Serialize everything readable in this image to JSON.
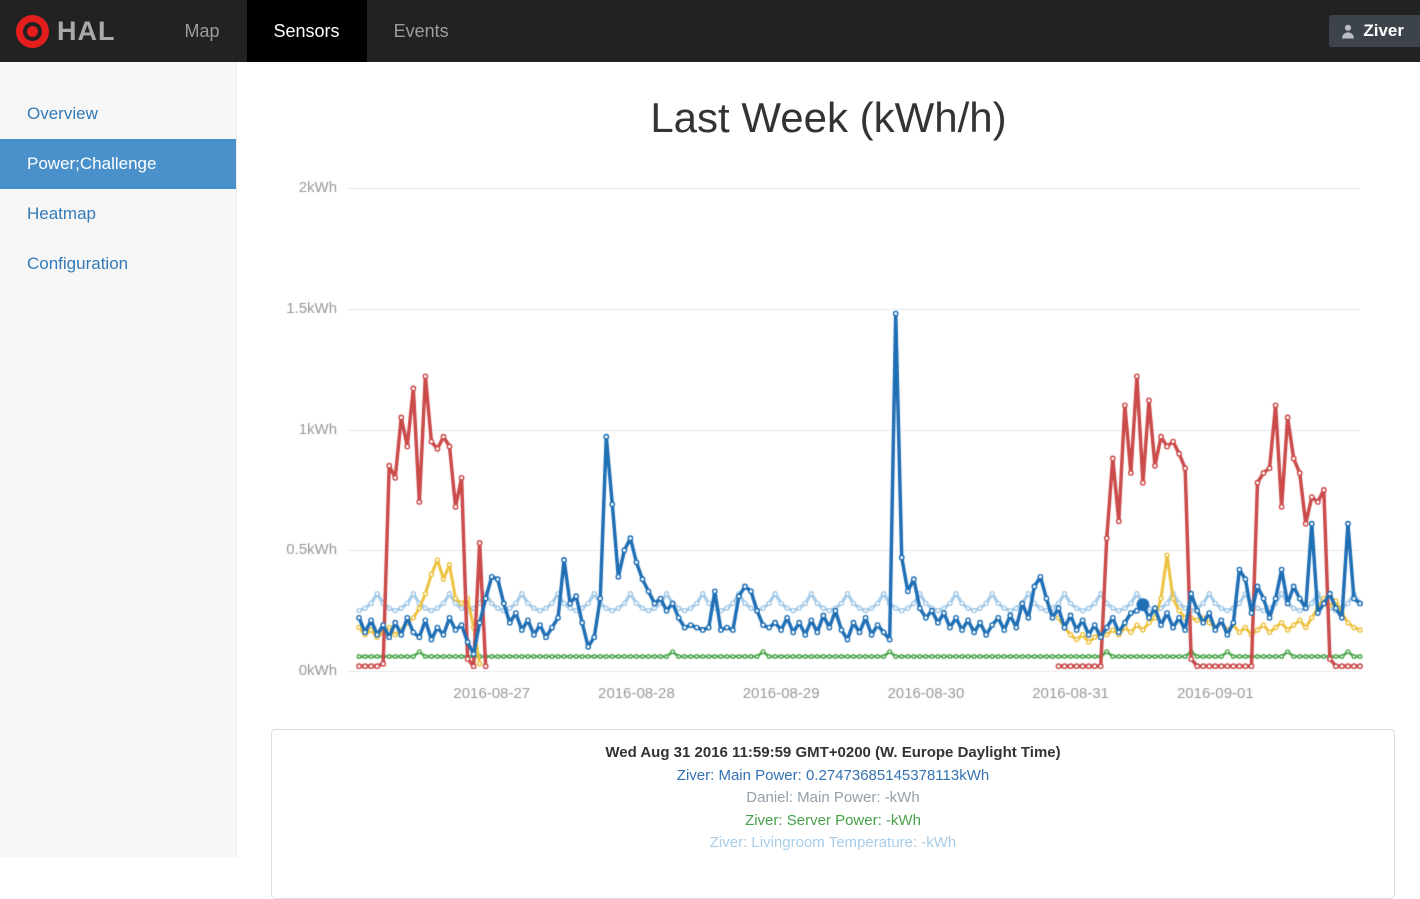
{
  "navbar": {
    "brand": "HAL",
    "items": [
      {
        "label": "Map",
        "active": false
      },
      {
        "label": "Sensors",
        "active": true
      },
      {
        "label": "Events",
        "active": false
      }
    ],
    "user": "Ziver"
  },
  "sidebar": {
    "items": [
      {
        "label": "Overview",
        "active": false
      },
      {
        "label": "Power;Challenge",
        "active": true
      },
      {
        "label": "Heatmap",
        "active": false
      },
      {
        "label": "Configuration",
        "active": false
      }
    ],
    "active_color": "#4a90ca",
    "link_color": "#337ab7"
  },
  "main": {
    "title": "Last Week (kWh/h)"
  },
  "tooltip_panel": {
    "lines": [
      {
        "text": "Wed Aug 31 2016 11:59:59 GMT+0200 (W. Europe Daylight Time)",
        "color": "#333333",
        "bold": true
      },
      {
        "text": "Ziver: Main Power: 0.27473685145378113kWh",
        "color": "#3572b0",
        "bold": false
      },
      {
        "text": "Daniel: Main Power: -kWh",
        "color": "#94a0ab",
        "bold": false
      },
      {
        "text": "Ziver: Server Power: -kWh",
        "color": "#46a049",
        "bold": false
      },
      {
        "text": "Ziver: Livingroom Temperature: -kWh",
        "color": "#a8cde8",
        "bold": false
      }
    ]
  },
  "chart_data": {
    "type": "line",
    "title": "Last Week (kWh/h)",
    "axes": {
      "x_epoch": "2016-08-26 00:00",
      "x_unit": "hours",
      "x_min_hour": 0,
      "x_max_hour": 168,
      "ylim": [
        0,
        2
      ],
      "grid": "horizontal-only",
      "tick_color": "#999999",
      "grid_color": "#e8e8e8"
    },
    "y_ticks": [
      {
        "v": 0,
        "label": "0kWh"
      },
      {
        "v": 0.5,
        "label": "0.5kWh"
      },
      {
        "v": 1,
        "label": "1kWh"
      },
      {
        "v": 1.5,
        "label": "1.5kWh"
      },
      {
        "v": 2,
        "label": "2kWh"
      }
    ],
    "x_ticks": [
      {
        "hour": 24,
        "label": "2016-08-27"
      },
      {
        "hour": 48,
        "label": "2016-08-28"
      },
      {
        "hour": 72,
        "label": "2016-08-29"
      },
      {
        "hour": 96,
        "label": "2016-08-30"
      },
      {
        "hour": 120,
        "label": "2016-08-31"
      },
      {
        "hour": 144,
        "label": "2016-09-01"
      }
    ],
    "hover_point": {
      "hour": 132,
      "value": 0.2747,
      "series": "Ziver: Main Power",
      "color": "#1f6fb5",
      "radius": 6.5
    },
    "series": [
      {
        "name": "Ziver: Livingroom Temperature",
        "color": "#a6cbe8",
        "line_width": 3.2,
        "marker_radius": 2.0,
        "z": 1,
        "segments": [
          {
            "start_hour": 2,
            "values": [
              0.25,
              0.26,
              0.28,
              0.32,
              0.28,
              0.26,
              0.25,
              0.26,
              0.28,
              0.32,
              0.28,
              0.26,
              0.25,
              0.26,
              0.28,
              0.32,
              0.28,
              0.26,
              0.25,
              0.26,
              0.28,
              0.32,
              0.28,
              0.26,
              0.25,
              0.26,
              0.28,
              0.32,
              0.28,
              0.26,
              0.25,
              0.26,
              0.28,
              0.32,
              0.28,
              0.26,
              0.25,
              0.26,
              0.28,
              0.32,
              0.28,
              0.26,
              0.25,
              0.26,
              0.28,
              0.32,
              0.28,
              0.26,
              0.25,
              0.26,
              0.28,
              0.32,
              0.28,
              0.26,
              0.25,
              0.26,
              0.28,
              0.32,
              0.28,
              0.26,
              0.25,
              0.26,
              0.28,
              0.32,
              0.28,
              0.26,
              0.25,
              0.26,
              0.28,
              0.32,
              0.28,
              0.26,
              0.25,
              0.26,
              0.28,
              0.32,
              0.28,
              0.26,
              0.25,
              0.26,
              0.28,
              0.32,
              0.28,
              0.26,
              0.25,
              0.26,
              0.28,
              0.32,
              0.28,
              0.26,
              0.25,
              0.26,
              0.28,
              0.32,
              0.28,
              0.26,
              0.25,
              0.26,
              0.28,
              0.32,
              0.28,
              0.26,
              0.25,
              0.26,
              0.28,
              0.32,
              0.28,
              0.26,
              0.25,
              0.26,
              0.28,
              0.32,
              0.28,
              0.26,
              0.25,
              0.26,
              0.28,
              0.32,
              0.28,
              0.26,
              0.25,
              0.26,
              0.28,
              0.32,
              0.28,
              0.26,
              0.25,
              0.26,
              0.28,
              0.32,
              0.28,
              0.26,
              0.25,
              0.26,
              0.28,
              0.32,
              0.28,
              0.26,
              0.25,
              0.26,
              0.28,
              0.32,
              0.28,
              0.26,
              0.25,
              0.26,
              0.28,
              0.32,
              0.28,
              0.26,
              0.25,
              0.26,
              0.28,
              0.32,
              0.28,
              0.26,
              0.25,
              0.26,
              0.28,
              0.32,
              0.28,
              0.26,
              0.25,
              0.26,
              0.28,
              0.32,
              0.28
            ]
          }
        ]
      },
      {
        "name": "Ziver: Server Power",
        "color": "#4da74d",
        "line_width": 2.5,
        "marker_radius": 1.8,
        "z": 2,
        "segments": [
          {
            "start_hour": 2,
            "values": [
              0.06,
              0.06,
              0.06,
              0.06,
              0.06,
              0.06,
              0.06,
              0.06,
              0.06,
              0.06,
              0.08,
              0.06,
              0.06,
              0.06,
              0.06,
              0.06,
              0.06,
              0.06,
              0.06,
              0.06,
              0.06,
              0.06,
              0.06,
              0.06,
              0.06,
              0.06,
              0.06,
              0.06,
              0.06,
              0.06,
              0.06,
              0.06,
              0.06,
              0.06,
              0.06,
              0.06,
              0.06,
              0.06,
              0.06,
              0.06,
              0.06,
              0.06,
              0.06,
              0.06,
              0.06,
              0.06,
              0.06,
              0.06,
              0.06,
              0.06,
              0.06,
              0.06,
              0.08,
              0.06,
              0.06,
              0.06,
              0.06,
              0.06,
              0.06,
              0.06,
              0.06,
              0.06,
              0.06,
              0.06,
              0.06,
              0.06,
              0.06,
              0.08,
              0.06,
              0.06,
              0.06,
              0.06,
              0.06,
              0.06,
              0.06,
              0.06,
              0.06,
              0.06,
              0.06,
              0.06,
              0.06,
              0.06,
              0.06,
              0.06,
              0.06,
              0.06,
              0.06,
              0.06,
              0.08,
              0.06,
              0.06,
              0.06,
              0.06,
              0.06,
              0.06,
              0.06,
              0.06,
              0.06,
              0.06,
              0.06,
              0.06,
              0.06,
              0.06,
              0.06,
              0.06,
              0.06,
              0.06,
              0.06,
              0.06,
              0.06,
              0.06,
              0.06,
              0.06,
              0.06,
              0.06,
              0.06,
              0.06,
              0.06,
              0.06,
              0.06,
              0.06,
              0.06,
              0.06,
              0.06,
              0.08,
              0.06,
              0.06,
              0.06,
              0.06,
              0.06,
              0.06,
              0.06,
              0.06,
              0.06,
              0.06,
              0.06,
              0.06,
              0.06,
              0.08,
              0.06,
              0.06,
              0.06,
              0.06,
              0.06,
              0.08,
              0.06,
              0.06,
              0.06,
              0.06,
              0.06,
              0.06,
              0.06,
              0.06,
              0.06,
              0.08,
              0.06,
              0.06,
              0.06,
              0.06,
              0.06,
              0.06,
              0.06,
              0.06,
              0.06,
              0.08,
              0.06,
              0.06
            ]
          }
        ]
      },
      {
        "name": "",
        "color": "#edc240",
        "line_width": 3.0,
        "marker_radius": 2.0,
        "z": 3,
        "segments": [
          {
            "start_hour": 2,
            "values": [
              0.18,
              0.15,
              0.17,
              0.14,
              0.16,
              0.18,
              0.15,
              0.17,
              0.2,
              0.22,
              0.26,
              0.32,
              0.4,
              0.46,
              0.38,
              0.44,
              0.3,
              0.28,
              0.3,
              0.18,
              0.03
            ]
          },
          {
            "start_hour": 118,
            "values": [
              0.22,
              0.18,
              0.15,
              0.13,
              0.15,
              0.12,
              0.14,
              0.16,
              0.15,
              0.17,
              0.15,
              0.18,
              0.16,
              0.19,
              0.17,
              0.2,
              0.22,
              0.3,
              0.48,
              0.3,
              0.25,
              0.22,
              0.22,
              0.21,
              0.22,
              0.2,
              0.18,
              0.2,
              0.17,
              0.19,
              0.16,
              0.18,
              0.15,
              0.17,
              0.19,
              0.16,
              0.18,
              0.2,
              0.17,
              0.19,
              0.21,
              0.18,
              0.22,
              0.26,
              0.3,
              0.27,
              0.29,
              0.24,
              0.2,
              0.18,
              0.17
            ]
          }
        ]
      },
      {
        "name": "Daniel: Main Power",
        "color": "#cb4b4b",
        "line_width": 3.5,
        "marker_radius": 2.2,
        "z": 4,
        "segments": [
          {
            "start_hour": 2,
            "values": [
              0.02,
              0.02,
              0.02,
              0.02,
              0.03,
              0.85,
              0.8,
              1.05,
              0.93,
              1.17,
              0.7,
              1.22,
              0.95,
              0.92,
              0.97,
              0.93,
              0.68,
              0.8,
              0.05,
              0.02,
              0.53,
              0.02
            ]
          },
          {
            "start_hour": 118,
            "values": [
              0.02,
              0.02,
              0.02,
              0.02,
              0.02,
              0.02,
              0.02,
              0.02,
              0.55,
              0.88,
              0.62,
              1.1,
              0.82,
              1.22,
              0.78,
              1.12,
              0.85,
              0.97,
              0.93,
              0.95,
              0.9,
              0.84,
              0.05,
              0.02,
              0.02,
              0.02,
              0.02,
              0.02,
              0.02,
              0.02,
              0.02,
              0.02,
              0.02,
              0.78,
              0.82,
              0.84,
              1.1,
              0.68,
              1.05,
              0.88,
              0.82,
              0.61,
              0.72,
              0.7,
              0.75,
              0.05,
              0.02,
              0.02,
              0.02,
              0.02,
              0.02
            ]
          }
        ]
      },
      {
        "name": "Ziver: Main Power",
        "color": "#1f6fb5",
        "line_width": 3.5,
        "marker_radius": 2.2,
        "z": 5,
        "segments": [
          {
            "start_hour": 2,
            "values": [
              0.22,
              0.16,
              0.21,
              0.15,
              0.19,
              0.14,
              0.2,
              0.15,
              0.22,
              0.16,
              0.14,
              0.21,
              0.13,
              0.18,
              0.15,
              0.22,
              0.17,
              0.19,
              0.12,
              0.07,
              0.2,
              0.3,
              0.39,
              0.38,
              0.28,
              0.2,
              0.24,
              0.17,
              0.21,
              0.15,
              0.19,
              0.14,
              0.18,
              0.22,
              0.46,
              0.28,
              0.31,
              0.2,
              0.1,
              0.14,
              0.3,
              0.97,
              0.69,
              0.39,
              0.5,
              0.55,
              0.45,
              0.38,
              0.33,
              0.28,
              0.3,
              0.25,
              0.28,
              0.22,
              0.18,
              0.19,
              0.18,
              0.17,
              0.18,
              0.33,
              0.17,
              0.18,
              0.17,
              0.31,
              0.35,
              0.33,
              0.25,
              0.19,
              0.18,
              0.2,
              0.17,
              0.22,
              0.16,
              0.2,
              0.15,
              0.21,
              0.16,
              0.23,
              0.18,
              0.25,
              0.17,
              0.13,
              0.2,
              0.16,
              0.22,
              0.15,
              0.19,
              0.16,
              0.13,
              1.48,
              0.47,
              0.33,
              0.38,
              0.26,
              0.22,
              0.25,
              0.2,
              0.24,
              0.18,
              0.22,
              0.17,
              0.21,
              0.16,
              0.2,
              0.15,
              0.19,
              0.22,
              0.17,
              0.23,
              0.18,
              0.28,
              0.22,
              0.35,
              0.39,
              0.3,
              0.22,
              0.26,
              0.18,
              0.23,
              0.17,
              0.21,
              0.15,
              0.19,
              0.14,
              0.18,
              0.22,
              0.16,
              0.2,
              0.24,
              0.25,
              0.2747,
              0.22,
              0.26,
              0.19,
              0.24,
              0.18,
              0.22,
              0.17,
              0.32,
              0.25,
              0.2,
              0.24,
              0.17,
              0.21,
              0.15,
              0.2,
              0.42,
              0.38,
              0.24,
              0.35,
              0.3,
              0.22,
              0.3,
              0.42,
              0.28,
              0.35,
              0.3,
              0.26,
              0.61,
              0.24,
              0.28,
              0.32,
              0.26,
              0.22,
              0.61,
              0.3,
              0.28
            ]
          }
        ]
      }
    ]
  }
}
